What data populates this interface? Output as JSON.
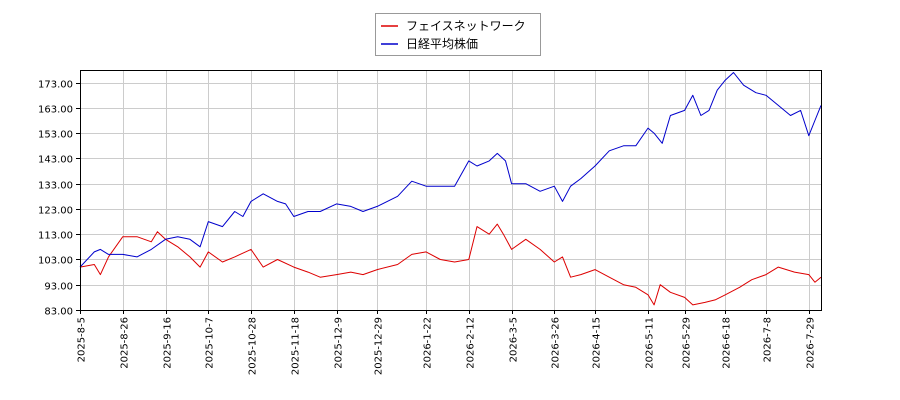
{
  "chart_data": {
    "type": "line",
    "title": "",
    "xlabel": "",
    "ylabel": "",
    "ylim": [
      83,
      178
    ],
    "yticks": [
      83,
      93,
      103,
      113,
      123,
      133,
      143,
      153,
      163,
      173
    ],
    "ytick_labels": [
      "83.00",
      "93.00",
      "103.00",
      "113.00",
      "123.00",
      "133.00",
      "143.00",
      "153.00",
      "163.00",
      "173.00"
    ],
    "xlim": [
      "2025-08-05",
      "2026-08-04"
    ],
    "xticks": [
      "2025-08-05",
      "2025-08-26",
      "2025-09-16",
      "2025-10-07",
      "2025-10-28",
      "2025-11-18",
      "2025-12-09",
      "2025-12-29",
      "2026-01-22",
      "2026-02-12",
      "2026-03-05",
      "2026-03-26",
      "2026-04-15",
      "2026-05-11",
      "2026-05-29",
      "2026-06-18",
      "2026-07-08",
      "2026-07-29"
    ],
    "xtick_labels": [
      "2025-8-5",
      "2025-8-26",
      "2025-9-16",
      "2025-10-7",
      "2025-10-28",
      "2025-11-18",
      "2025-12-9",
      "2025-12-29",
      "2026-1-22",
      "2026-2-12",
      "2026-3-5",
      "2026-3-26",
      "2026-4-15",
      "2026-5-11",
      "2026-5-29",
      "2026-6-18",
      "2026-7-8",
      "2026-7-29"
    ],
    "grid": true,
    "legend_position": "top-center",
    "series": [
      {
        "name": "フェイスネットワーク",
        "color": "#dd0000",
        "x": [
          "2025-08-05",
          "2025-08-12",
          "2025-08-15",
          "2025-08-19",
          "2025-08-26",
          "2025-09-02",
          "2025-09-09",
          "2025-09-12",
          "2025-09-16",
          "2025-09-22",
          "2025-09-28",
          "2025-10-03",
          "2025-10-07",
          "2025-10-14",
          "2025-10-20",
          "2025-10-28",
          "2025-11-03",
          "2025-11-10",
          "2025-11-18",
          "2025-11-25",
          "2025-12-01",
          "2025-12-09",
          "2025-12-16",
          "2025-12-22",
          "2025-12-29",
          "2026-01-08",
          "2026-01-15",
          "2026-01-22",
          "2026-01-29",
          "2026-02-05",
          "2026-02-12",
          "2026-02-16",
          "2026-02-22",
          "2026-02-26",
          "2026-03-01",
          "2026-03-05",
          "2026-03-12",
          "2026-03-19",
          "2026-03-26",
          "2026-03-30",
          "2026-04-03",
          "2026-04-08",
          "2026-04-15",
          "2026-04-22",
          "2026-04-29",
          "2026-05-05",
          "2026-05-11",
          "2026-05-14",
          "2026-05-17",
          "2026-05-22",
          "2026-05-29",
          "2026-06-02",
          "2026-06-08",
          "2026-06-13",
          "2026-06-18",
          "2026-06-25",
          "2026-07-01",
          "2026-07-08",
          "2026-07-14",
          "2026-07-22",
          "2026-07-29",
          "2026-08-01",
          "2026-08-04"
        ],
        "values": [
          100,
          101,
          97,
          104,
          112,
          112,
          110,
          114,
          111,
          108,
          104,
          100,
          106,
          102,
          104,
          107,
          100,
          103,
          100,
          98,
          96,
          97,
          98,
          97,
          99,
          101,
          105,
          106,
          103,
          102,
          103,
          116,
          113,
          117,
          113,
          107,
          111,
          107,
          102,
          104,
          96,
          97,
          99,
          96,
          93,
          92,
          89,
          85,
          93,
          90,
          88,
          85,
          86,
          87,
          89,
          92,
          95,
          97,
          100,
          98,
          97,
          94,
          96
        ]
      },
      {
        "name": "日経平均株価",
        "color": "#0000cc",
        "x": [
          "2025-08-05",
          "2025-08-12",
          "2025-08-15",
          "2025-08-19",
          "2025-08-26",
          "2025-09-02",
          "2025-09-09",
          "2025-09-16",
          "2025-09-22",
          "2025-09-28",
          "2025-10-03",
          "2025-10-07",
          "2025-10-14",
          "2025-10-20",
          "2025-10-24",
          "2025-10-28",
          "2025-11-03",
          "2025-11-10",
          "2025-11-14",
          "2025-11-18",
          "2025-11-25",
          "2025-12-01",
          "2025-12-09",
          "2025-12-16",
          "2025-12-22",
          "2025-12-29",
          "2026-01-08",
          "2026-01-15",
          "2026-01-22",
          "2026-01-29",
          "2026-02-05",
          "2026-02-12",
          "2026-02-16",
          "2026-02-22",
          "2026-02-26",
          "2026-03-02",
          "2026-03-05",
          "2026-03-12",
          "2026-03-19",
          "2026-03-26",
          "2026-03-30",
          "2026-04-03",
          "2026-04-08",
          "2026-04-15",
          "2026-04-22",
          "2026-04-29",
          "2026-05-05",
          "2026-05-11",
          "2026-05-14",
          "2026-05-18",
          "2026-05-22",
          "2026-05-29",
          "2026-06-02",
          "2026-06-06",
          "2026-06-10",
          "2026-06-14",
          "2026-06-18",
          "2026-06-22",
          "2026-06-27",
          "2026-07-03",
          "2026-07-08",
          "2026-07-14",
          "2026-07-20",
          "2026-07-25",
          "2026-07-29",
          "2026-08-01",
          "2026-08-04"
        ],
        "values": [
          100,
          106,
          107,
          105,
          105,
          104,
          107,
          111,
          112,
          111,
          108,
          118,
          116,
          122,
          120,
          126,
          129,
          126,
          125,
          120,
          122,
          122,
          125,
          124,
          122,
          124,
          128,
          134,
          132,
          132,
          132,
          142,
          140,
          142,
          145,
          142,
          133,
          133,
          130,
          132,
          126,
          132,
          135,
          140,
          146,
          148,
          148,
          155,
          153,
          149,
          160,
          162,
          168,
          160,
          162,
          170,
          174,
          177,
          172,
          169,
          168,
          164,
          160,
          162,
          152,
          158,
          164
        ]
      }
    ]
  }
}
